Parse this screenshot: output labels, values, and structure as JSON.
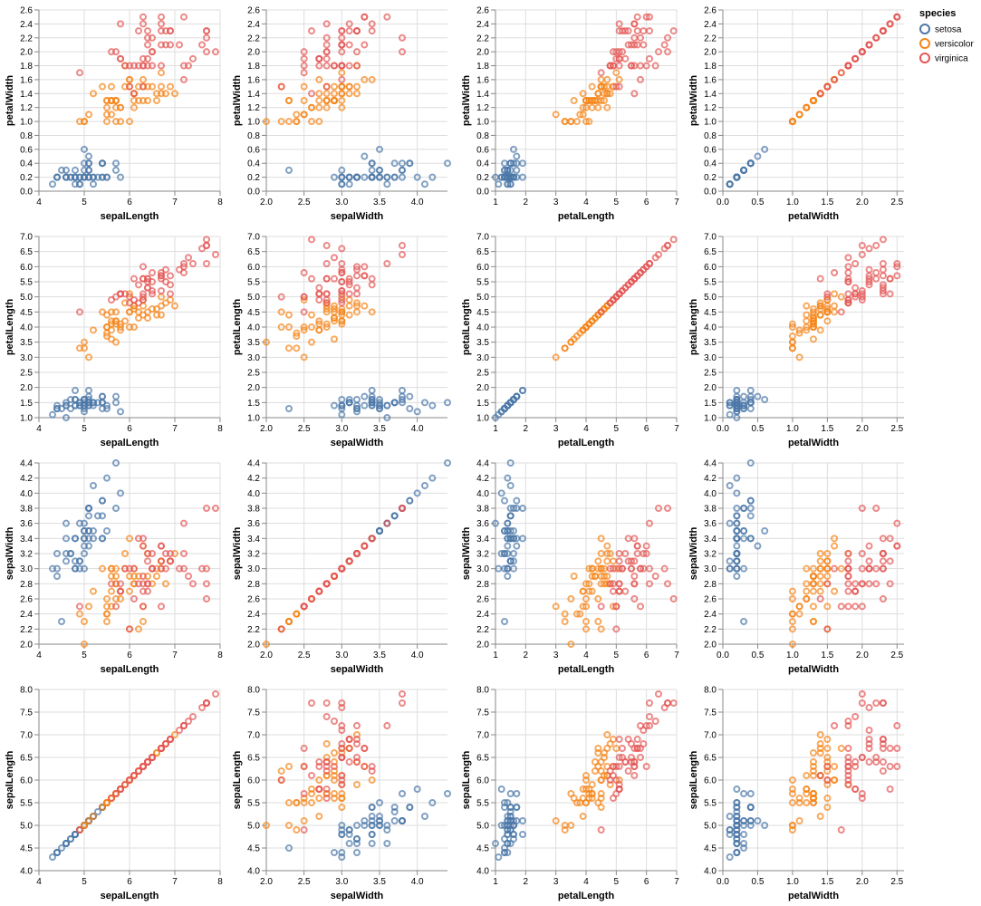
{
  "chart_data": {
    "type": "scatter",
    "title": "",
    "layout": "scatter-plot-matrix",
    "rows": [
      "petalWidth",
      "petalLength",
      "sepalWidth",
      "sepalLength"
    ],
    "columns": [
      "sepalLength",
      "sepalWidth",
      "petalLength",
      "petalWidth"
    ],
    "grid": true,
    "legend": {
      "title": "species",
      "placement": "top-right",
      "entries": [
        "setosa",
        "versicolor",
        "virginica"
      ]
    },
    "colors": {
      "setosa": "#4c78a8",
      "versicolor": "#f58518",
      "virginica": "#e45756"
    },
    "fields": {
      "sepalLength": {
        "label": "sepalLength",
        "domain": [
          4,
          8
        ],
        "ticks": [
          4,
          5,
          6,
          7,
          8
        ],
        "decimals": 0,
        "rowDomain": [
          4,
          8
        ],
        "rowTicks": [
          4.0,
          4.5,
          5.0,
          5.5,
          6.0,
          6.5,
          7.0,
          7.5,
          8.0
        ],
        "rowDecimals": 1
      },
      "sepalWidth": {
        "label": "sepalWidth",
        "domain": [
          2,
          4.4
        ],
        "ticks": [
          2.0,
          2.5,
          3.0,
          3.5,
          4.0
        ],
        "decimals": 1,
        "rowDomain": [
          2,
          4.4
        ],
        "rowTicks": [
          2.0,
          2.2,
          2.4,
          2.6,
          2.8,
          3.0,
          3.2,
          3.4,
          3.6,
          3.8,
          4.0,
          4.2,
          4.4
        ],
        "rowDecimals": 1
      },
      "petalLength": {
        "label": "petalLength",
        "domain": [
          1,
          7
        ],
        "ticks": [
          1,
          2,
          3,
          4,
          5,
          6,
          7
        ],
        "decimals": 0,
        "rowDomain": [
          1,
          7
        ],
        "rowTicks": [
          1.0,
          1.5,
          2.0,
          2.5,
          3.0,
          3.5,
          4.0,
          4.5,
          5.0,
          5.5,
          6.0,
          6.5,
          7.0
        ],
        "rowDecimals": 1
      },
      "petalWidth": {
        "label": "petalWidth",
        "domain": [
          0,
          2.6
        ],
        "ticks": [
          0.0,
          0.5,
          1.0,
          1.5,
          2.0,
          2.5
        ],
        "decimals": 1,
        "rowDomain": [
          0,
          2.6
        ],
        "rowTicks": [
          0.0,
          0.2,
          0.4,
          0.6,
          0.8,
          1.0,
          1.2,
          1.4,
          1.6,
          1.8,
          2.0,
          2.2,
          2.4,
          2.6
        ],
        "rowDecimals": 1
      }
    },
    "record_fields": [
      "sepalLength",
      "sepalWidth",
      "petalLength",
      "petalWidth"
    ],
    "series": [
      {
        "name": "setosa",
        "records": [
          [
            5.1,
            3.5,
            1.4,
            0.2
          ],
          [
            4.9,
            3.0,
            1.4,
            0.2
          ],
          [
            4.7,
            3.2,
            1.3,
            0.2
          ],
          [
            4.6,
            3.1,
            1.5,
            0.2
          ],
          [
            5.0,
            3.6,
            1.4,
            0.2
          ],
          [
            5.4,
            3.9,
            1.7,
            0.4
          ],
          [
            4.6,
            3.4,
            1.4,
            0.3
          ],
          [
            5.0,
            3.4,
            1.5,
            0.2
          ],
          [
            4.4,
            2.9,
            1.4,
            0.2
          ],
          [
            4.9,
            3.1,
            1.5,
            0.1
          ],
          [
            5.4,
            3.7,
            1.5,
            0.2
          ],
          [
            4.8,
            3.4,
            1.6,
            0.2
          ],
          [
            4.8,
            3.0,
            1.4,
            0.1
          ],
          [
            4.3,
            3.0,
            1.1,
            0.1
          ],
          [
            5.8,
            4.0,
            1.2,
            0.2
          ],
          [
            5.7,
            4.4,
            1.5,
            0.4
          ],
          [
            5.4,
            3.9,
            1.3,
            0.4
          ],
          [
            5.1,
            3.5,
            1.4,
            0.3
          ],
          [
            5.7,
            3.8,
            1.7,
            0.3
          ],
          [
            5.1,
            3.8,
            1.5,
            0.3
          ],
          [
            5.4,
            3.4,
            1.7,
            0.2
          ],
          [
            5.1,
            3.7,
            1.5,
            0.4
          ],
          [
            4.6,
            3.6,
            1.0,
            0.2
          ],
          [
            5.1,
            3.3,
            1.7,
            0.5
          ],
          [
            4.8,
            3.4,
            1.9,
            0.2
          ],
          [
            5.0,
            3.0,
            1.6,
            0.2
          ],
          [
            5.0,
            3.4,
            1.6,
            0.4
          ],
          [
            5.2,
            3.5,
            1.5,
            0.2
          ],
          [
            5.2,
            3.4,
            1.4,
            0.2
          ],
          [
            4.7,
            3.2,
            1.6,
            0.2
          ],
          [
            4.8,
            3.1,
            1.6,
            0.2
          ],
          [
            5.4,
            3.4,
            1.5,
            0.4
          ],
          [
            5.2,
            4.1,
            1.5,
            0.1
          ],
          [
            5.5,
            4.2,
            1.4,
            0.2
          ],
          [
            4.9,
            3.1,
            1.5,
            0.2
          ],
          [
            5.0,
            3.2,
            1.2,
            0.2
          ],
          [
            5.5,
            3.5,
            1.3,
            0.2
          ],
          [
            4.9,
            3.6,
            1.4,
            0.1
          ],
          [
            4.4,
            3.0,
            1.3,
            0.2
          ],
          [
            5.1,
            3.4,
            1.5,
            0.2
          ],
          [
            5.0,
            3.5,
            1.3,
            0.3
          ],
          [
            4.5,
            2.3,
            1.3,
            0.3
          ],
          [
            4.4,
            3.2,
            1.3,
            0.2
          ],
          [
            5.0,
            3.5,
            1.6,
            0.6
          ],
          [
            5.1,
            3.8,
            1.9,
            0.4
          ],
          [
            4.8,
            3.0,
            1.4,
            0.3
          ],
          [
            5.1,
            3.8,
            1.6,
            0.2
          ],
          [
            4.6,
            3.2,
            1.4,
            0.2
          ],
          [
            5.3,
            3.7,
            1.5,
            0.2
          ],
          [
            5.0,
            3.3,
            1.4,
            0.2
          ]
        ]
      },
      {
        "name": "versicolor",
        "records": [
          [
            7.0,
            3.2,
            4.7,
            1.4
          ],
          [
            6.4,
            3.2,
            4.5,
            1.5
          ],
          [
            6.9,
            3.1,
            4.9,
            1.5
          ],
          [
            5.5,
            2.3,
            4.0,
            1.3
          ],
          [
            6.5,
            2.8,
            4.6,
            1.5
          ],
          [
            5.7,
            2.8,
            4.5,
            1.3
          ],
          [
            6.3,
            3.3,
            4.7,
            1.6
          ],
          [
            4.9,
            2.4,
            3.3,
            1.0
          ],
          [
            6.6,
            2.9,
            4.6,
            1.3
          ],
          [
            5.2,
            2.7,
            3.9,
            1.4
          ],
          [
            5.0,
            2.0,
            3.5,
            1.0
          ],
          [
            5.9,
            3.0,
            4.2,
            1.5
          ],
          [
            6.0,
            2.2,
            4.0,
            1.0
          ],
          [
            6.1,
            2.9,
            4.7,
            1.4
          ],
          [
            5.6,
            2.9,
            3.6,
            1.3
          ],
          [
            6.7,
            3.1,
            4.4,
            1.4
          ],
          [
            5.6,
            3.0,
            4.5,
            1.5
          ],
          [
            5.8,
            2.7,
            4.1,
            1.0
          ],
          [
            6.2,
            2.2,
            4.5,
            1.5
          ],
          [
            5.6,
            2.5,
            3.9,
            1.1
          ],
          [
            5.9,
            3.2,
            4.8,
            1.8
          ],
          [
            6.1,
            2.8,
            4.0,
            1.3
          ],
          [
            6.3,
            2.5,
            4.9,
            1.5
          ],
          [
            6.1,
            2.8,
            4.7,
            1.2
          ],
          [
            6.4,
            2.9,
            4.3,
            1.3
          ],
          [
            6.6,
            3.0,
            4.4,
            1.4
          ],
          [
            6.8,
            2.8,
            4.8,
            1.4
          ],
          [
            6.7,
            3.0,
            5.0,
            1.7
          ],
          [
            6.0,
            2.9,
            4.5,
            1.5
          ],
          [
            5.7,
            2.6,
            3.5,
            1.0
          ],
          [
            5.5,
            2.4,
            3.8,
            1.1
          ],
          [
            5.5,
            2.4,
            3.7,
            1.0
          ],
          [
            5.8,
            2.7,
            3.9,
            1.2
          ],
          [
            6.0,
            2.7,
            5.1,
            1.6
          ],
          [
            5.4,
            3.0,
            4.5,
            1.5
          ],
          [
            6.0,
            3.4,
            4.5,
            1.6
          ],
          [
            6.7,
            3.1,
            4.7,
            1.5
          ],
          [
            6.3,
            2.3,
            4.4,
            1.3
          ],
          [
            5.6,
            3.0,
            4.1,
            1.3
          ],
          [
            5.5,
            2.5,
            4.0,
            1.3
          ],
          [
            5.5,
            2.6,
            4.4,
            1.2
          ],
          [
            6.1,
            3.0,
            4.6,
            1.4
          ],
          [
            5.8,
            2.6,
            4.0,
            1.2
          ],
          [
            5.0,
            2.3,
            3.3,
            1.0
          ],
          [
            5.6,
            2.7,
            4.2,
            1.3
          ],
          [
            5.7,
            3.0,
            4.2,
            1.2
          ],
          [
            5.7,
            2.9,
            4.2,
            1.3
          ],
          [
            6.2,
            2.9,
            4.3,
            1.3
          ],
          [
            5.1,
            2.5,
            3.0,
            1.1
          ],
          [
            5.7,
            2.8,
            4.1,
            1.3
          ]
        ]
      },
      {
        "name": "virginica",
        "records": [
          [
            6.3,
            3.3,
            6.0,
            2.5
          ],
          [
            5.8,
            2.7,
            5.1,
            1.9
          ],
          [
            7.1,
            3.0,
            5.9,
            2.1
          ],
          [
            6.3,
            2.9,
            5.6,
            1.8
          ],
          [
            6.5,
            3.0,
            5.8,
            2.2
          ],
          [
            7.6,
            3.0,
            6.6,
            2.1
          ],
          [
            4.9,
            2.5,
            4.5,
            1.7
          ],
          [
            7.3,
            2.9,
            6.3,
            1.8
          ],
          [
            6.7,
            2.5,
            5.8,
            1.8
          ],
          [
            7.2,
            3.6,
            6.1,
            2.5
          ],
          [
            6.5,
            3.2,
            5.1,
            2.0
          ],
          [
            6.4,
            2.7,
            5.3,
            1.9
          ],
          [
            6.8,
            3.0,
            5.5,
            2.1
          ],
          [
            5.7,
            2.5,
            5.0,
            2.0
          ],
          [
            5.8,
            2.8,
            5.1,
            2.4
          ],
          [
            6.4,
            3.2,
            5.3,
            2.3
          ],
          [
            6.5,
            3.0,
            5.5,
            1.8
          ],
          [
            7.7,
            3.8,
            6.7,
            2.2
          ],
          [
            7.7,
            2.6,
            6.9,
            2.3
          ],
          [
            6.0,
            2.2,
            5.0,
            1.5
          ],
          [
            6.9,
            3.2,
            5.7,
            2.3
          ],
          [
            5.6,
            2.8,
            4.9,
            2.0
          ],
          [
            7.7,
            2.8,
            6.7,
            2.0
          ],
          [
            6.3,
            2.7,
            4.9,
            1.8
          ],
          [
            6.7,
            3.3,
            5.7,
            2.1
          ],
          [
            7.2,
            3.2,
            6.0,
            1.8
          ],
          [
            6.2,
            2.8,
            4.8,
            1.8
          ],
          [
            6.1,
            3.0,
            4.9,
            1.8
          ],
          [
            6.4,
            2.8,
            5.6,
            2.1
          ],
          [
            7.2,
            3.0,
            5.8,
            1.6
          ],
          [
            7.4,
            2.8,
            6.1,
            1.9
          ],
          [
            7.9,
            3.8,
            6.4,
            2.0
          ],
          [
            6.4,
            2.8,
            5.6,
            2.2
          ],
          [
            6.3,
            2.8,
            5.1,
            1.5
          ],
          [
            6.1,
            2.6,
            5.6,
            1.4
          ],
          [
            7.7,
            3.0,
            6.1,
            2.3
          ],
          [
            6.3,
            3.4,
            5.6,
            2.4
          ],
          [
            6.4,
            3.1,
            5.5,
            1.8
          ],
          [
            6.0,
            3.0,
            4.8,
            1.8
          ],
          [
            6.9,
            3.1,
            5.4,
            2.1
          ],
          [
            6.7,
            3.1,
            5.6,
            2.4
          ],
          [
            6.9,
            3.1,
            5.1,
            2.3
          ],
          [
            5.8,
            2.7,
            5.1,
            1.9
          ],
          [
            6.8,
            3.2,
            5.9,
            2.3
          ],
          [
            6.7,
            3.3,
            5.7,
            2.5
          ],
          [
            6.7,
            3.0,
            5.2,
            2.3
          ],
          [
            6.3,
            2.5,
            5.0,
            1.9
          ],
          [
            6.5,
            3.0,
            5.2,
            2.0
          ],
          [
            6.2,
            3.4,
            5.4,
            2.3
          ],
          [
            5.9,
            3.0,
            5.1,
            1.8
          ]
        ]
      }
    ]
  }
}
